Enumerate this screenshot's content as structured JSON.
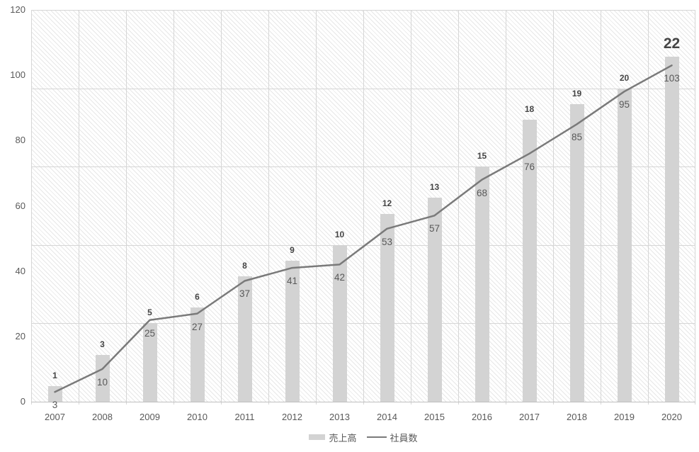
{
  "chart_data": {
    "type": "combo",
    "categories": [
      "2007",
      "2008",
      "2009",
      "2010",
      "2011",
      "2012",
      "2013",
      "2014",
      "2015",
      "2016",
      "2017",
      "2018",
      "2019",
      "2020"
    ],
    "series": [
      {
        "name": "売上高",
        "type": "bar",
        "values": [
          1,
          3,
          5,
          6,
          8,
          9,
          10,
          12,
          13,
          15,
          18,
          19,
          20,
          22
        ]
      },
      {
        "name": "社員数",
        "type": "line",
        "values": [
          3,
          10,
          25,
          27,
          37,
          41,
          42,
          53,
          57,
          68,
          76,
          85,
          95,
          103
        ]
      }
    ],
    "ylim": [
      0,
      120
    ],
    "yticks": [
      0,
      20,
      40,
      60,
      80,
      100,
      120
    ],
    "gridlines_y": [
      24,
      48,
      72,
      96,
      120
    ],
    "bar_value_scale": 4.8,
    "grid": true,
    "legend_position": "bottom",
    "plot_background": "diagonal-hatch",
    "emphasized_label": {
      "series_index": 0,
      "point_index": 13,
      "text": "22"
    }
  },
  "colors": {
    "background": "#ffffff",
    "bar": "#d3d3d3",
    "line": "#7a7a7a",
    "bar_label": "#444444",
    "line_label": "#595959",
    "axis_text": "#595959",
    "gridline": "#d6d6d6",
    "axis_line": "#bfbfbf",
    "hatch": "#e7e7e7"
  }
}
